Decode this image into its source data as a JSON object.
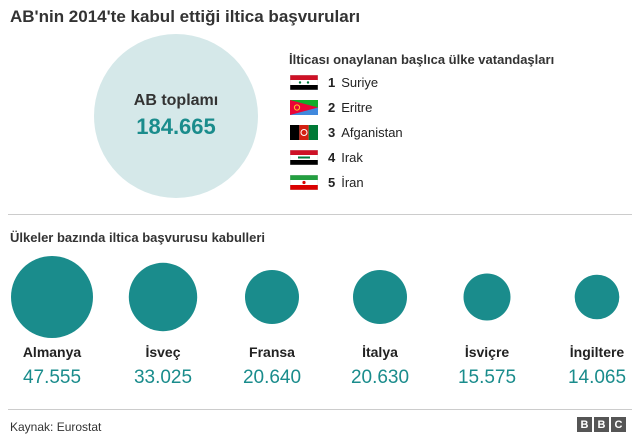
{
  "title": "AB'nin 2014'te kabul ettiği iltica başvuruları",
  "colors": {
    "teal": "#1a8c8c",
    "circle_light": "#d5e8e9"
  },
  "total": {
    "label": "AB toplamı",
    "value": "184.665"
  },
  "top_countries": {
    "title": "İlticası onaylanan başlıca ülke vatandaşları",
    "items": [
      {
        "rank": "1",
        "name": "Suriye",
        "flag": "syria-flag"
      },
      {
        "rank": "2",
        "name": "Eritre",
        "flag": "eritrea-flag"
      },
      {
        "rank": "3",
        "name": "Afganistan",
        "flag": "afghanistan-flag"
      },
      {
        "rank": "4",
        "name": "Irak",
        "flag": "iraq-flag"
      },
      {
        "rank": "5",
        "name": "İran",
        "flag": "iran-flag"
      }
    ]
  },
  "section_title": "Ülkeler bazında iltica başvurusu kabulleri",
  "chart_data": {
    "type": "bubble",
    "categories": [
      "Almanya",
      "İsveç",
      "Fransa",
      "İtalya",
      "İsviçre",
      "İngiltere"
    ],
    "values": [
      47555,
      33025,
      20640,
      20630,
      15575,
      14065
    ],
    "value_labels": [
      "47.555",
      "33.025",
      "20.640",
      "20.630",
      "15.575",
      "14.065"
    ]
  },
  "footer": {
    "source": "Kaynak: Eurostat",
    "logo_letters": [
      "B",
      "B",
      "C"
    ]
  }
}
